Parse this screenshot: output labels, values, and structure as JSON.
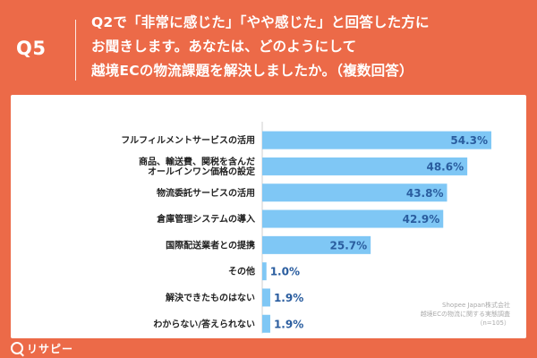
{
  "header": {
    "q_label": "Q5",
    "question_lines": [
      "Q2で「非常に感じた」「やや感じた」と回答した方に",
      "お聞きします。あなたは、どのようにして",
      "越境ECの物流課題を解決しましたか。（複数回答）"
    ]
  },
  "chart_data": {
    "type": "bar",
    "orientation": "horizontal",
    "categories": [
      "フルフィルメントサービスの活用",
      "商品、輸送費、関税を含んだ\nオールインワン価格の設定",
      "物流委託サービスの活用",
      "倉庫管理システムの導入",
      "国際配送業者との提携",
      "その他",
      "解決できたものはない",
      "わからない/答えられない"
    ],
    "values": [
      54.3,
      48.6,
      43.8,
      42.9,
      25.7,
      1.0,
      1.9,
      1.9
    ],
    "value_labels": [
      "54.3%",
      "48.6%",
      "43.8%",
      "42.9%",
      "25.7%",
      "1.0%",
      "1.9%",
      "1.9%"
    ],
    "xlim": [
      0,
      70
    ],
    "bar_color": "#7fc7f5",
    "label_color": "#2a5d9f"
  },
  "source": {
    "lines": [
      "Shopee Japan株式会社",
      "越境ECの物流に関する実態調査",
      "（n=105）"
    ]
  },
  "logo": {
    "text": "リサピー",
    "icon": "magnifier-icon"
  },
  "colors": {
    "background": "#ec6a48",
    "panel": "#ffffff",
    "text_dark": "#222222"
  }
}
